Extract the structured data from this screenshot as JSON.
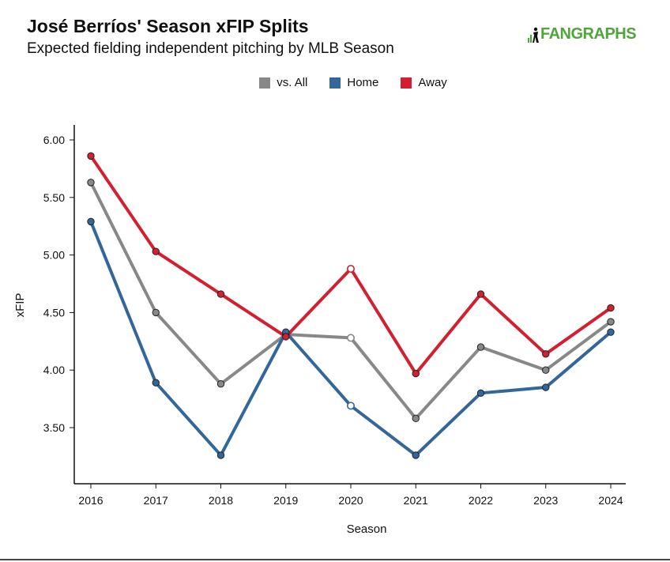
{
  "header": {
    "title": "José Berríos' Season xFIP Splits",
    "subtitle": "Expected fielding independent pitching by MLB Season",
    "logo_text": "FANGRAPHS"
  },
  "chart_data": {
    "type": "line",
    "title": "José Berríos' Season xFIP Splits",
    "subtitle": "Expected fielding independent pitching by MLB Season",
    "xlabel": "Season",
    "ylabel": "xFIP",
    "ylim": [
      3.0,
      6.15
    ],
    "yticks": [
      "3.50",
      "4.00",
      "4.50",
      "5.00",
      "5.50",
      "6.00"
    ],
    "ytick_values": [
      3.5,
      4.0,
      4.5,
      5.0,
      5.5,
      6.0
    ],
    "categories": [
      "2016",
      "2017",
      "2018",
      "2019",
      "2020",
      "2021",
      "2022",
      "2023",
      "2024"
    ],
    "legend_position": "top-center",
    "grid": false,
    "series": [
      {
        "name": "vs. All",
        "color": "#888888",
        "values": [
          5.63,
          4.5,
          3.88,
          4.31,
          4.28,
          3.58,
          4.2,
          4.0,
          4.42
        ],
        "hollow": [
          false,
          false,
          false,
          false,
          true,
          false,
          false,
          false,
          false
        ]
      },
      {
        "name": "Home",
        "color": "#336699",
        "values": [
          5.29,
          3.89,
          3.26,
          4.33,
          3.69,
          3.26,
          3.8,
          3.85,
          4.33
        ],
        "hollow": [
          false,
          false,
          false,
          false,
          true,
          false,
          false,
          false,
          false
        ]
      },
      {
        "name": "Away",
        "color": "#d22030",
        "values": [
          5.86,
          5.03,
          4.66,
          4.29,
          4.88,
          3.97,
          4.66,
          4.14,
          4.54
        ],
        "hollow": [
          false,
          false,
          false,
          false,
          true,
          false,
          false,
          false,
          false
        ]
      }
    ]
  }
}
